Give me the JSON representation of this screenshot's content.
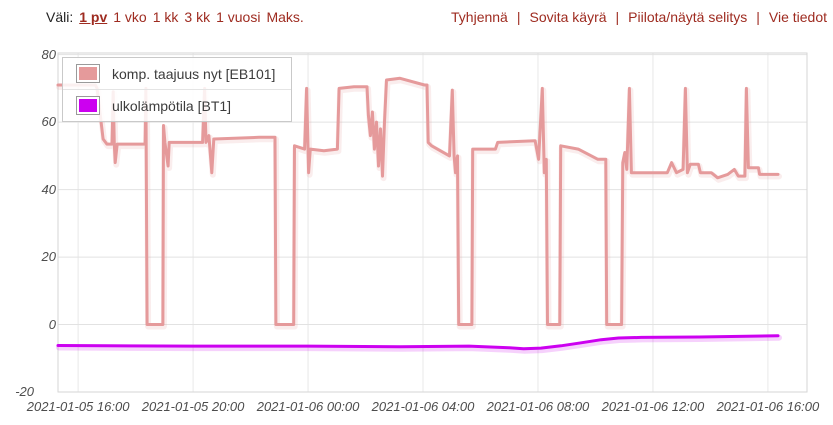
{
  "toolbar": {
    "range_label": "Väli:",
    "ranges": [
      "1 pv",
      "1 vko",
      "1 kk",
      "3 kk",
      "1 vuosi",
      "Maks."
    ],
    "selected_range": "1 pv",
    "separator": "|",
    "actions": [
      "Tyhjennä",
      "Sovita käyrä",
      "Piilota/näytä selitys",
      "Vie tiedot"
    ],
    "link_color": "#9e2b20"
  },
  "chart_data": {
    "type": "line",
    "title": "",
    "grid": true,
    "legend_position": "top-left",
    "x_axis": {
      "unit": "time",
      "tick_labels": [
        "2021-01-05 16:00",
        "2021-01-05 20:00",
        "2021-01-06 00:00",
        "2021-01-06 04:00",
        "2021-01-06 08:00",
        "2021-01-06 12:00",
        "2021-01-06 16:00"
      ],
      "tick_hours": [
        0,
        4,
        8,
        12,
        16,
        20,
        24
      ],
      "range_hours": [
        -0.7,
        25.36
      ],
      "hours_origin": "2021-01-05 16:00"
    },
    "y_axis": {
      "tick_values": [
        80,
        60,
        40,
        20,
        0,
        -20
      ],
      "range": [
        -20,
        80.5
      ]
    },
    "series": [
      {
        "name": "komp. taajuus nyt [EB101]",
        "color": "#e59a9b",
        "points": [
          [
            -0.7,
            71
          ],
          [
            0.6,
            71
          ],
          [
            0.66,
            70
          ],
          [
            0.87,
            55
          ],
          [
            1,
            53.5
          ],
          [
            1.18,
            53.5
          ],
          [
            1.22,
            69
          ],
          [
            1.26,
            53.5
          ],
          [
            1.29,
            48
          ],
          [
            1.36,
            53.5
          ],
          [
            2.33,
            53.5
          ],
          [
            2.36,
            70
          ],
          [
            2.4,
            0
          ],
          [
            2.95,
            0
          ],
          [
            2.97,
            59
          ],
          [
            3.02,
            54
          ],
          [
            3.13,
            47
          ],
          [
            3.17,
            54
          ],
          [
            4.33,
            54
          ],
          [
            4.4,
            70
          ],
          [
            4.45,
            54
          ],
          [
            4.55,
            56
          ],
          [
            4.65,
            45
          ],
          [
            4.72,
            55
          ],
          [
            6.3,
            55.5
          ],
          [
            6.85,
            55.5
          ],
          [
            6.88,
            0
          ],
          [
            7.5,
            0
          ],
          [
            7.53,
            53
          ],
          [
            7.88,
            52
          ],
          [
            7.95,
            70
          ],
          [
            8.02,
            45
          ],
          [
            8.08,
            52
          ],
          [
            8.55,
            51.5
          ],
          [
            9.02,
            52
          ],
          [
            9.08,
            70
          ],
          [
            9.6,
            70.5
          ],
          [
            10.05,
            70.5
          ],
          [
            10.1,
            62
          ],
          [
            10.17,
            56
          ],
          [
            10.24,
            63
          ],
          [
            10.31,
            52
          ],
          [
            10.38,
            60
          ],
          [
            10.45,
            47
          ],
          [
            10.52,
            58
          ],
          [
            10.59,
            44
          ],
          [
            10.66,
            60
          ],
          [
            10.73,
            72.5
          ],
          [
            11.2,
            73
          ],
          [
            12.05,
            71
          ],
          [
            12.14,
            71
          ],
          [
            12.18,
            54
          ],
          [
            12.3,
            53
          ],
          [
            12.92,
            50
          ],
          [
            13.02,
            69.5
          ],
          [
            13.08,
            50
          ],
          [
            13.13,
            45
          ],
          [
            13.2,
            50
          ],
          [
            13.24,
            0
          ],
          [
            13.7,
            0
          ],
          [
            13.73,
            52
          ],
          [
            14.52,
            52
          ],
          [
            14.6,
            54
          ],
          [
            15.9,
            54.5
          ],
          [
            16.02,
            49
          ],
          [
            16.15,
            70
          ],
          [
            16.22,
            45
          ],
          [
            16.29,
            49
          ],
          [
            16.33,
            0
          ],
          [
            16.76,
            0
          ],
          [
            16.79,
            53
          ],
          [
            17.4,
            52
          ],
          [
            18.08,
            49
          ],
          [
            18.36,
            49
          ],
          [
            18.39,
            0
          ],
          [
            18.91,
            0
          ],
          [
            18.95,
            48
          ],
          [
            19.02,
            51
          ],
          [
            19.09,
            46
          ],
          [
            19.18,
            70
          ],
          [
            19.25,
            45
          ],
          [
            20.5,
            45
          ],
          [
            20.65,
            48
          ],
          [
            20.82,
            45
          ],
          [
            21.05,
            46
          ],
          [
            21.13,
            70
          ],
          [
            21.2,
            45
          ],
          [
            21.3,
            47.5
          ],
          [
            21.58,
            47.5
          ],
          [
            21.65,
            45
          ],
          [
            22.03,
            45
          ],
          [
            22.25,
            43.5
          ],
          [
            22.6,
            44.5
          ],
          [
            22.83,
            46
          ],
          [
            22.97,
            44
          ],
          [
            23.2,
            44
          ],
          [
            23.25,
            70
          ],
          [
            23.32,
            46.5
          ],
          [
            23.67,
            46.5
          ],
          [
            23.71,
            44.5
          ],
          [
            24.35,
            44.5
          ]
        ]
      },
      {
        "name": "ulkolämpötila [BT1]",
        "color": "#cc00f0",
        "points": [
          [
            -0.7,
            -6.2
          ],
          [
            1,
            -6.3
          ],
          [
            4,
            -6.4
          ],
          [
            8,
            -6.4
          ],
          [
            11.2,
            -6.6
          ],
          [
            13.6,
            -6.4
          ],
          [
            15,
            -6.9
          ],
          [
            15.5,
            -7.2
          ],
          [
            16.1,
            -7
          ],
          [
            16.8,
            -6.3
          ],
          [
            17.5,
            -5.4
          ],
          [
            18.2,
            -4.5
          ],
          [
            18.8,
            -4
          ],
          [
            19.6,
            -3.8
          ],
          [
            21.6,
            -3.7
          ],
          [
            24.35,
            -3.3
          ]
        ]
      }
    ]
  }
}
